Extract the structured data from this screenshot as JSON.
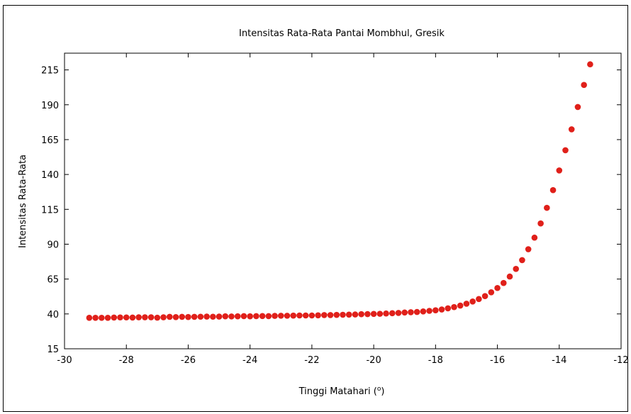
{
  "chart_data": {
    "type": "scatter",
    "title": "Intensitas Rata-Rata Pantai Mombhul, Gresik",
    "xlabel_prefix": "Tinggi Matahari (",
    "xlabel_sup": "o",
    "xlabel_suffix": ")",
    "ylabel": "Intensitas Rata-Rata",
    "xlim": [
      -30,
      -12
    ],
    "ylim": [
      15,
      227
    ],
    "x_ticks": [
      -30,
      -28,
      -26,
      -24,
      -22,
      -20,
      -18,
      -16,
      -14,
      -12
    ],
    "y_ticks": [
      15,
      40,
      65,
      90,
      115,
      140,
      165,
      190,
      215
    ],
    "grid": false,
    "marker_color": "#e0201a",
    "series": [
      {
        "points": [
          [
            -29.2,
            37.2
          ],
          [
            -29.0,
            37.2
          ],
          [
            -28.8,
            37.2
          ],
          [
            -28.6,
            37.2
          ],
          [
            -28.4,
            37.4
          ],
          [
            -28.2,
            37.5
          ],
          [
            -28.0,
            37.5
          ],
          [
            -27.8,
            37.4
          ],
          [
            -27.6,
            37.6
          ],
          [
            -27.4,
            37.6
          ],
          [
            -27.2,
            37.6
          ],
          [
            -27.0,
            37.3
          ],
          [
            -26.8,
            37.6
          ],
          [
            -26.6,
            37.9
          ],
          [
            -26.4,
            37.7
          ],
          [
            -26.2,
            37.9
          ],
          [
            -26.0,
            37.8
          ],
          [
            -25.8,
            37.9
          ],
          [
            -25.6,
            38.0
          ],
          [
            -25.4,
            38.1
          ],
          [
            -25.2,
            38.0
          ],
          [
            -25.0,
            38.1
          ],
          [
            -24.8,
            38.3
          ],
          [
            -24.6,
            38.2
          ],
          [
            -24.4,
            38.3
          ],
          [
            -24.2,
            38.4
          ],
          [
            -24.0,
            38.3
          ],
          [
            -23.8,
            38.4
          ],
          [
            -23.6,
            38.5
          ],
          [
            -23.4,
            38.4
          ],
          [
            -23.2,
            38.6
          ],
          [
            -23.0,
            38.7
          ],
          [
            -22.8,
            38.7
          ],
          [
            -22.6,
            38.8
          ],
          [
            -22.4,
            38.9
          ],
          [
            -22.2,
            38.9
          ],
          [
            -22.0,
            38.9
          ],
          [
            -21.8,
            39.0
          ],
          [
            -21.6,
            39.2
          ],
          [
            -21.4,
            39.2
          ],
          [
            -21.2,
            39.3
          ],
          [
            -21.0,
            39.4
          ],
          [
            -20.8,
            39.5
          ],
          [
            -20.6,
            39.6
          ],
          [
            -20.4,
            39.8
          ],
          [
            -20.2,
            39.9
          ],
          [
            -20.0,
            40.0
          ],
          [
            -19.8,
            40.1
          ],
          [
            -19.6,
            40.3
          ],
          [
            -19.4,
            40.5
          ],
          [
            -19.2,
            40.7
          ],
          [
            -19.0,
            41.0
          ],
          [
            -18.8,
            41.2
          ],
          [
            -18.6,
            41.4
          ],
          [
            -18.4,
            41.8
          ],
          [
            -18.2,
            42.2
          ],
          [
            -18.0,
            42.6
          ],
          [
            -17.8,
            43.2
          ],
          [
            -17.6,
            44.0
          ],
          [
            -17.4,
            44.9
          ],
          [
            -17.2,
            46.0
          ],
          [
            -17.0,
            47.3
          ],
          [
            -16.8,
            48.9
          ],
          [
            -16.6,
            50.7
          ],
          [
            -16.4,
            52.8
          ],
          [
            -16.2,
            55.5
          ],
          [
            -16.0,
            58.6
          ],
          [
            -15.8,
            62.2
          ],
          [
            -15.6,
            66.8
          ],
          [
            -15.4,
            72.3
          ],
          [
            -15.2,
            78.6
          ],
          [
            -15.0,
            86.4
          ],
          [
            -14.8,
            94.7
          ],
          [
            -14.6,
            104.9
          ],
          [
            -14.4,
            116.1
          ],
          [
            -14.2,
            128.8
          ],
          [
            -14.0,
            142.9
          ],
          [
            -13.8,
            157.4
          ],
          [
            -13.6,
            172.4
          ],
          [
            -13.4,
            188.4
          ],
          [
            -13.2,
            204.2
          ],
          [
            -13.0,
            219.0
          ]
        ]
      }
    ]
  }
}
